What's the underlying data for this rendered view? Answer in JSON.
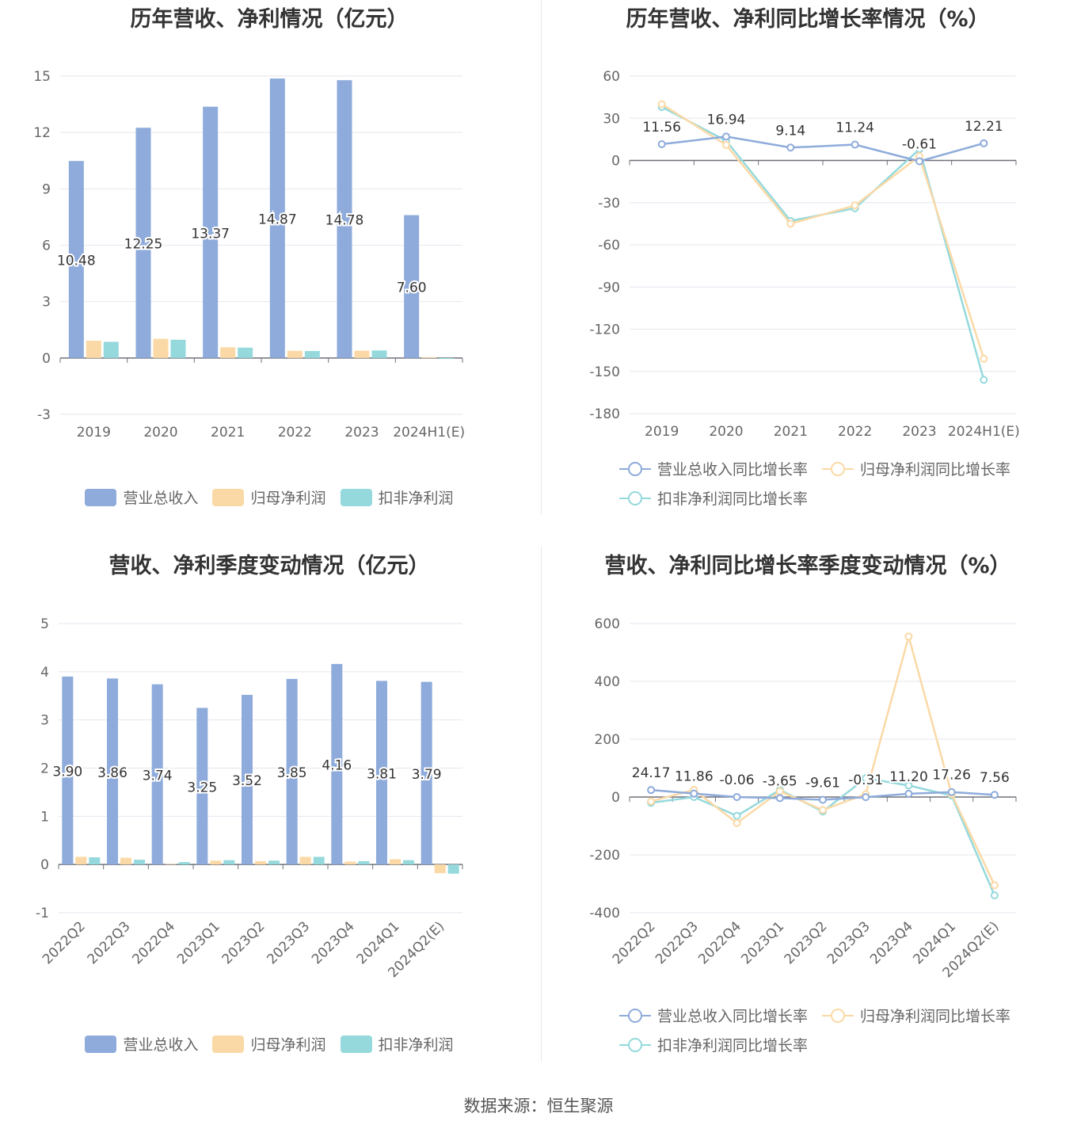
{
  "source_note": "数据来源：恒生聚源",
  "colors": {
    "blue": "#8eabdb",
    "orange": "#fbd9a6",
    "teal": "#95d9dc",
    "grid": "#e6e6ef",
    "axis": "#6e7079",
    "label": "#666666"
  },
  "chart_data": [
    {
      "type": "bar",
      "title": "历年营收、净利情况（亿元）",
      "categories": [
        "2019",
        "2020",
        "2021",
        "2022",
        "2023",
        "2024H1(E)"
      ],
      "series": [
        {
          "name": "营业总收入",
          "values": [
            10.48,
            12.25,
            13.37,
            14.87,
            14.78,
            7.6
          ],
          "labels": [
            "10.48",
            "12.25",
            "13.37",
            "14.87",
            "14.78",
            "7.60"
          ]
        },
        {
          "name": "归母净利润",
          "values": [
            0.92,
            1.02,
            0.57,
            0.38,
            0.39,
            0.04
          ]
        },
        {
          "name": "扣非净利润",
          "values": [
            0.86,
            0.97,
            0.55,
            0.37,
            0.4,
            -0.05
          ]
        }
      ],
      "ylim": [
        -3,
        15
      ],
      "yticks": [
        "15",
        "12",
        "9",
        "6",
        "3",
        "0",
        "-3"
      ],
      "grid": true,
      "legend_position": "bottom"
    },
    {
      "type": "line",
      "title": "历年营收、净利同比增长率情况（%）",
      "categories": [
        "2019",
        "2020",
        "2021",
        "2022",
        "2023",
        "2024H1(E)"
      ],
      "series": [
        {
          "name": "营业总收入同比增长率",
          "values": [
            11.56,
            16.94,
            9.14,
            11.24,
            -0.61,
            12.21
          ],
          "labels": [
            "11.56",
            "16.94",
            "9.14",
            "11.24",
            "-0.61",
            "12.21"
          ]
        },
        {
          "name": "归母净利润同比增长率",
          "values": [
            40,
            11,
            -45,
            -32,
            3,
            -141
          ]
        },
        {
          "name": "扣非净利润同比增长率",
          "values": [
            38,
            14,
            -43,
            -34,
            8,
            -156
          ]
        }
      ],
      "ylim": [
        -180,
        60
      ],
      "yticks": [
        "60",
        "30",
        "0",
        "-30",
        "-60",
        "-90",
        "-120",
        "-150",
        "-180"
      ],
      "grid": true,
      "legend_position": "bottom"
    },
    {
      "type": "bar",
      "title": "营收、净利季度变动情况（亿元）",
      "categories": [
        "2022Q2",
        "2022Q3",
        "2022Q4",
        "2023Q1",
        "2023Q2",
        "2023Q3",
        "2023Q4",
        "2024Q1",
        "2024Q2(E)"
      ],
      "series": [
        {
          "name": "营业总收入",
          "values": [
            3.9,
            3.86,
            3.74,
            3.25,
            3.52,
            3.85,
            4.16,
            3.81,
            3.79
          ],
          "labels": [
            "3.90",
            "3.86",
            "3.74",
            "3.25",
            "3.52",
            "3.85",
            "4.16",
            "3.81",
            "3.79"
          ]
        },
        {
          "name": "归母净利润",
          "values": [
            0.16,
            0.14,
            0.01,
            0.08,
            0.07,
            0.16,
            0.06,
            0.11,
            -0.18
          ]
        },
        {
          "name": "扣非净利润",
          "values": [
            0.15,
            0.1,
            0.05,
            0.09,
            0.08,
            0.16,
            0.07,
            0.09,
            -0.19
          ]
        }
      ],
      "ylim": [
        -1,
        5
      ],
      "yticks": [
        "5",
        "4",
        "3",
        "2",
        "1",
        "0",
        "-1"
      ],
      "grid": true,
      "legend_position": "bottom"
    },
    {
      "type": "line",
      "title": "营收、净利同比增长率季度变动情况（%）",
      "categories": [
        "2022Q2",
        "2022Q3",
        "2022Q4",
        "2023Q1",
        "2023Q2",
        "2023Q3",
        "2023Q4",
        "2024Q1",
        "2024Q2(E)"
      ],
      "series": [
        {
          "name": "营业总收入同比增长率",
          "values": [
            24.17,
            11.86,
            -0.06,
            -3.65,
            -9.61,
            -0.31,
            11.2,
            17.26,
            7.56
          ],
          "labels": [
            "24.17",
            "11.86",
            "-0.06",
            "-3.65",
            "-9.61",
            "-0.31",
            "11.20",
            "17.26",
            "7.56"
          ]
        },
        {
          "name": "归母净利润同比增长率",
          "values": [
            -15,
            25,
            -90,
            20,
            -45,
            10,
            555,
            10,
            -305
          ]
        },
        {
          "name": "扣非净利润同比增长率",
          "values": [
            -20,
            0,
            -65,
            25,
            -50,
            65,
            40,
            5,
            -340
          ]
        }
      ],
      "ylim": [
        -400,
        600
      ],
      "yticks": [
        "600",
        "400",
        "200",
        "0",
        "-200",
        "-400"
      ],
      "grid": true,
      "legend_position": "bottom"
    }
  ]
}
